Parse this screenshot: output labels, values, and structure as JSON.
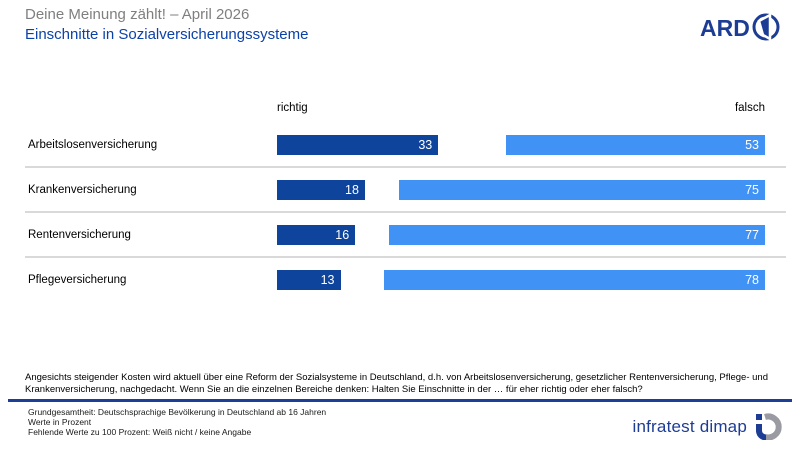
{
  "header": {
    "supertitle": "Deine Meinung zählt! – April 2026",
    "title": "Einschnitte in Sozialversicherungssysteme",
    "ard_logo_text": "ARD"
  },
  "column_headers": {
    "left": "richtig",
    "right": "falsch"
  },
  "chart_data": {
    "type": "bar",
    "orientation": "horizontal",
    "unit": "percent",
    "categories": [
      "Arbeitslosenversicherung",
      "Krankenversicherung",
      "Rentenversicherung",
      "Pflegeversicherung"
    ],
    "series": [
      {
        "name": "richtig",
        "color": "#0e449c",
        "values": [
          33,
          18,
          16,
          13
        ]
      },
      {
        "name": "falsch",
        "color": "#4092f5",
        "values": [
          53,
          75,
          77,
          78
        ]
      }
    ],
    "value_labels_inside": true,
    "xlim": [
      0,
      100
    ],
    "legend_position": "top-as-column-headers",
    "grid": false
  },
  "question": "Angesichts steigender Kosten wird aktuell über eine Reform der Sozialsysteme in Deutschland, d.h. von Arbeitslosenversicherung, gesetzlicher Rentenversicherung, Pflege- und Krankenversicherung, nachgedacht. Wenn Sie an die einzelnen Bereiche denken: Halten Sie Einschnitte in der … für eher richtig oder eher falsch?",
  "footer": {
    "line1": "Grundgesamtheit: Deutschsprachige Bevölkerung in Deutschland ab 16 Jahren",
    "line2": "Werte in Prozent",
    "line3": "Fehlende Werte zu 100 Prozent: Weiß nicht / keine Angabe",
    "brand": "infratest dimap"
  },
  "colors": {
    "supertitle_gray": "#7f7f7f",
    "title_blue": "#0c42a8",
    "bar_dark_blue": "#0e449c",
    "bar_light_blue": "#4092f5",
    "brand_navy": "#1d3c94",
    "divider_gray": "#d9d9d9"
  }
}
